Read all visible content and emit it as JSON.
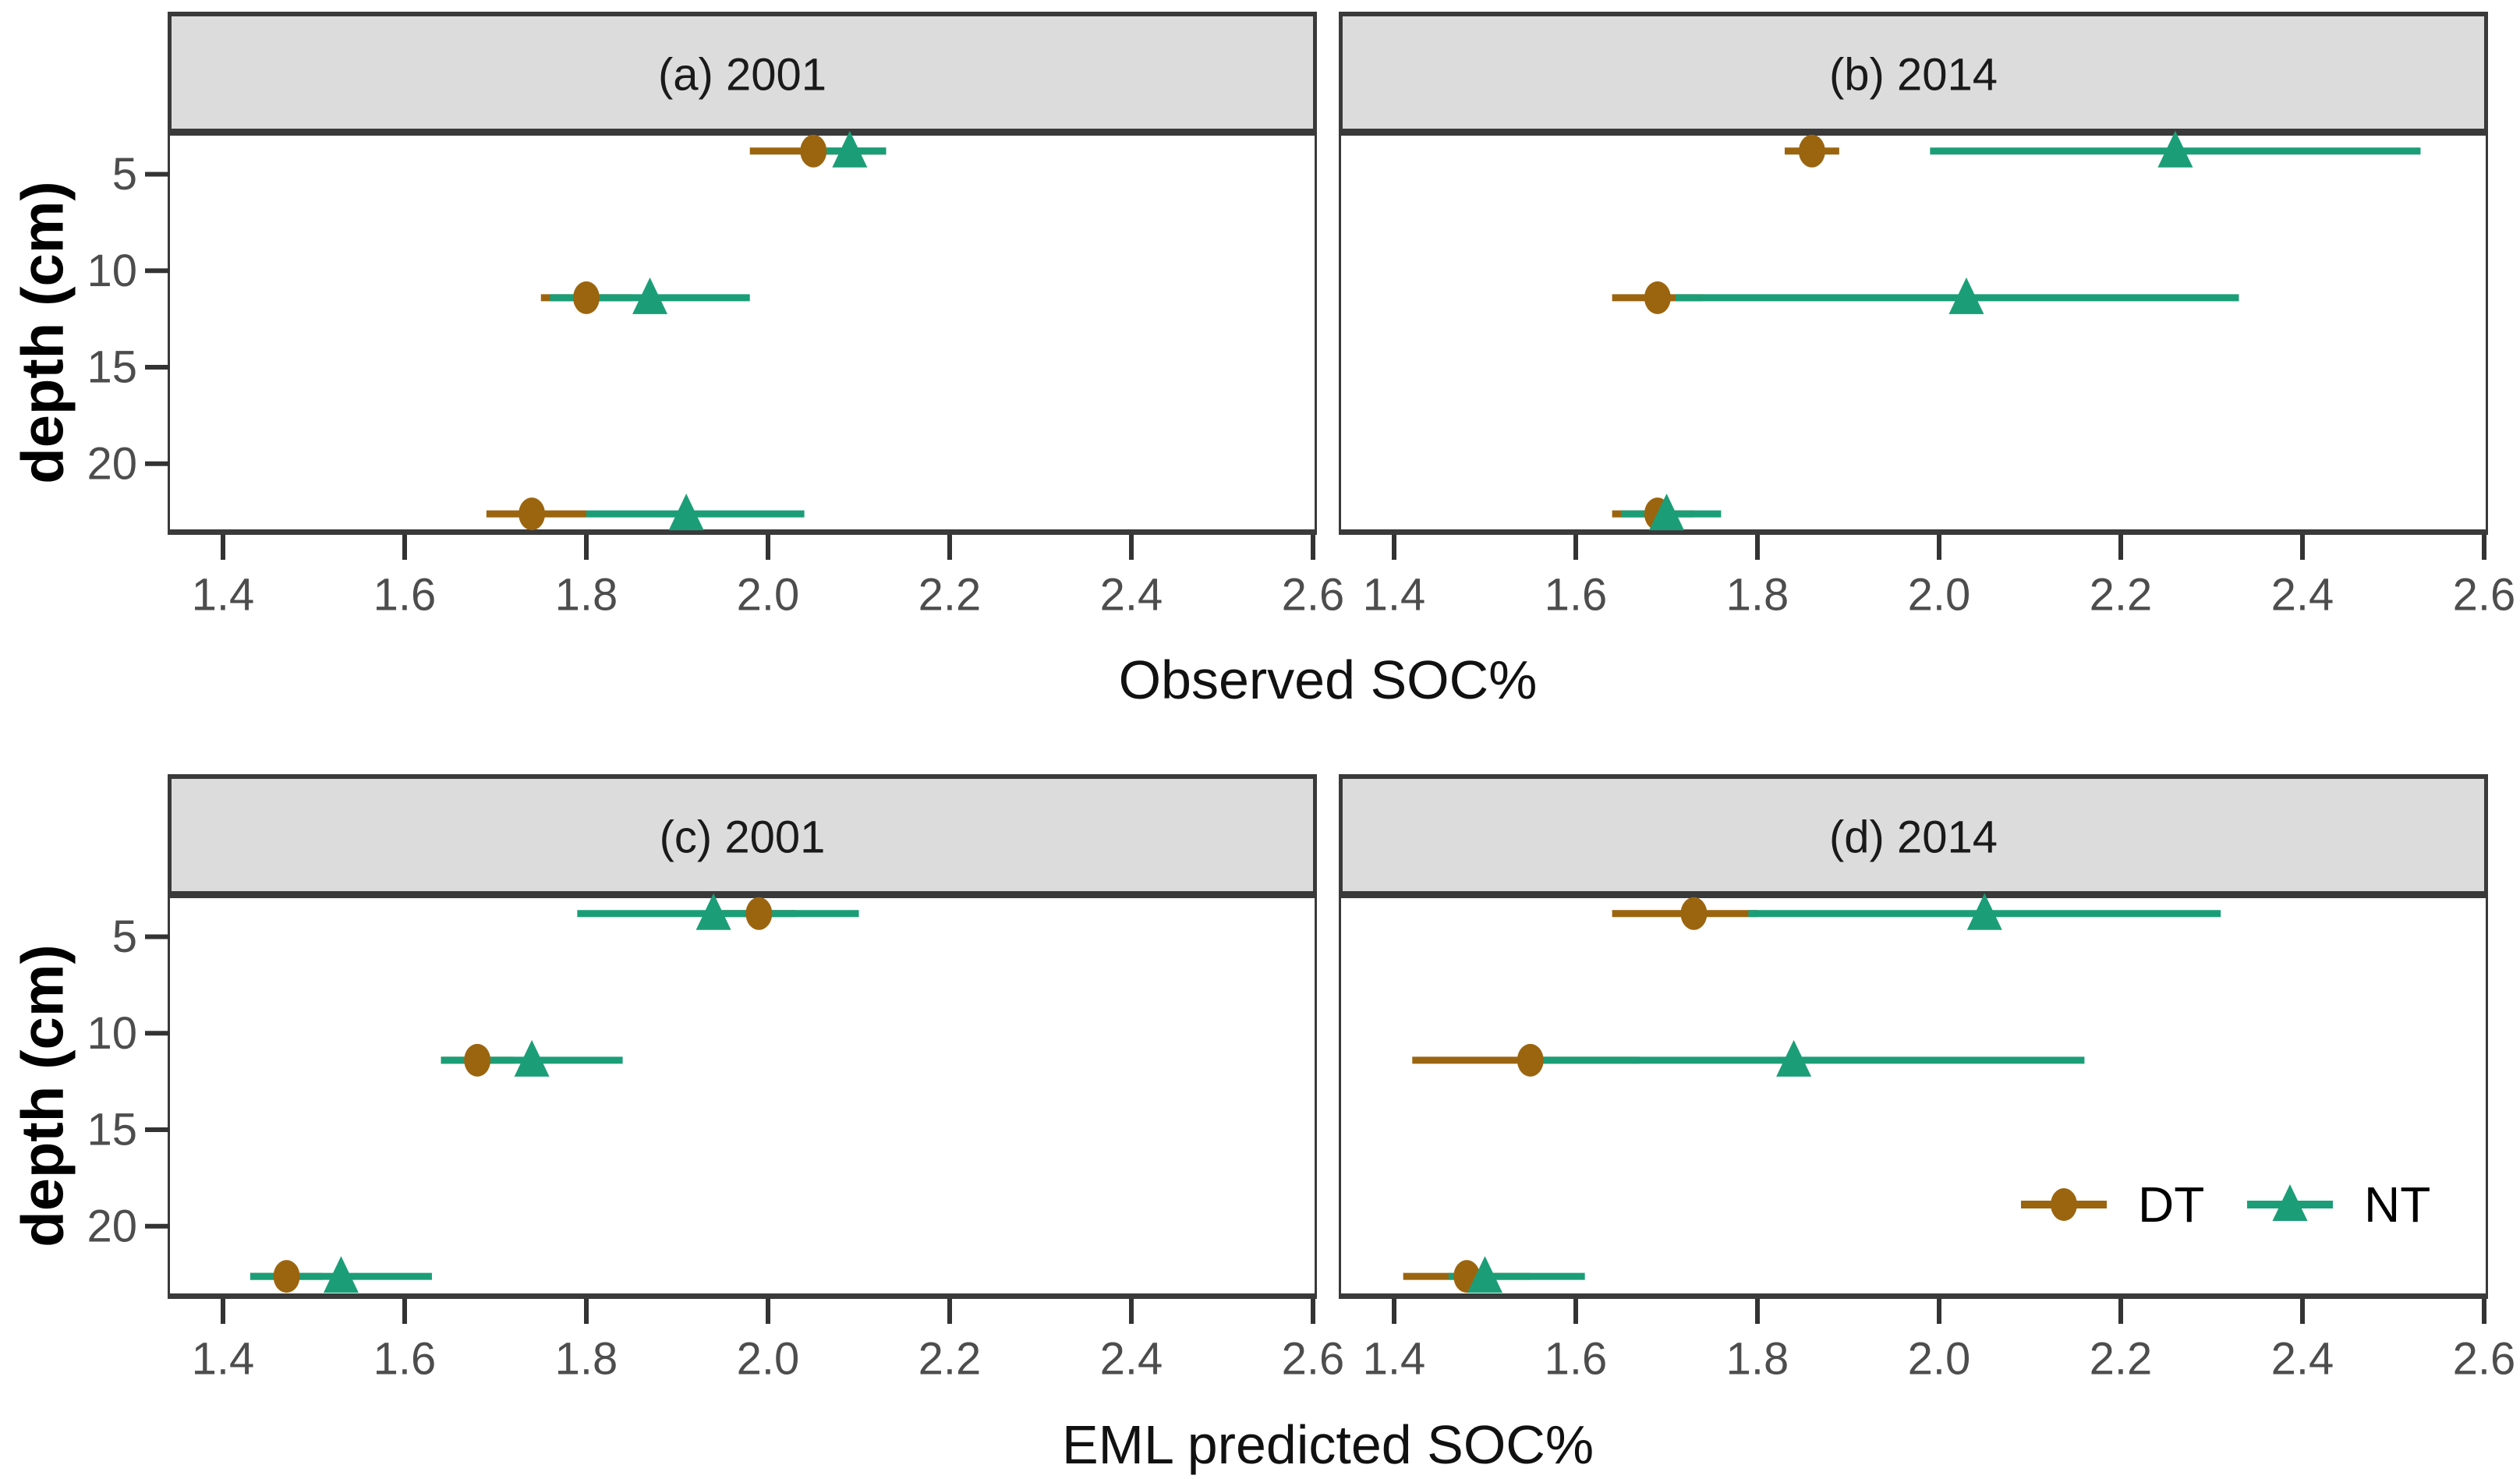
{
  "y_axis_title": "depth (cm)",
  "x_axis_titles": {
    "top": "Observed SOC%",
    "bottom": "EML predicted SOC%"
  },
  "x_tick_labels": [
    "1.4",
    "1.6",
    "1.8",
    "2.0",
    "2.2",
    "2.4",
    "2.6"
  ],
  "y_tick_labels": [
    "5",
    "10",
    "15",
    "20"
  ],
  "colors": {
    "dt": "#9B650F",
    "nt": "#1B9E77",
    "strip_bg": "#DCDCDC",
    "strip_border": "#3A3A3A",
    "panel_border": "#3A3A3A",
    "tick_mark": "#333333",
    "tick_text": "#4D4D4D",
    "title_text": "#111111"
  },
  "legend": {
    "items": [
      {
        "label": "DT",
        "marker": "circle",
        "color": "#9B650F"
      },
      {
        "label": "NT",
        "marker": "triangle",
        "color": "#1B9E77"
      }
    ]
  },
  "chart_data": [
    {
      "type": "scatter",
      "title": "(a) 2001",
      "xlabel": "Observed SOC%",
      "ylabel": "depth (cm)",
      "x_range": [
        1.4,
        2.6
      ],
      "x_tick_step": 0.2,
      "y_ticks_cm": [
        5,
        10,
        15,
        20
      ],
      "depths_cm": [
        3.8,
        11.4,
        22.6
      ],
      "series": [
        {
          "name": "DT",
          "marker": "circle",
          "values": [
            2.05,
            1.8,
            1.74
          ],
          "ci_low": [
            1.98,
            1.75,
            1.69
          ],
          "ci_high": [
            2.13,
            1.85,
            1.8
          ]
        },
        {
          "name": "NT",
          "marker": "triangle",
          "values": [
            2.09,
            1.87,
            1.91
          ],
          "ci_low": [
            2.04,
            1.76,
            1.8
          ],
          "ci_high": [
            2.13,
            1.98,
            2.04
          ]
        }
      ]
    },
    {
      "type": "scatter",
      "title": "(b) 2014",
      "xlabel": "Observed SOC%",
      "ylabel": "depth (cm)",
      "x_range": [
        1.4,
        2.6
      ],
      "x_tick_step": 0.2,
      "y_ticks_cm": [
        5,
        10,
        15,
        20
      ],
      "depths_cm": [
        3.8,
        11.4,
        22.6
      ],
      "series": [
        {
          "name": "DT",
          "marker": "circle",
          "values": [
            1.86,
            1.69,
            1.69
          ],
          "ci_low": [
            1.83,
            1.64,
            1.64
          ],
          "ci_high": [
            1.89,
            1.74,
            1.73
          ]
        },
        {
          "name": "NT",
          "marker": "triangle",
          "values": [
            2.26,
            2.03,
            1.7
          ],
          "ci_low": [
            1.99,
            1.71,
            1.65
          ],
          "ci_high": [
            2.53,
            2.33,
            1.76
          ]
        }
      ]
    },
    {
      "type": "scatter",
      "title": "(c) 2001",
      "xlabel": "EML predicted SOC%",
      "ylabel": "depth (cm)",
      "x_range": [
        1.4,
        2.6
      ],
      "x_tick_step": 0.2,
      "y_ticks_cm": [
        5,
        10,
        15,
        20
      ],
      "depths_cm": [
        3.8,
        11.4,
        22.6
      ],
      "series": [
        {
          "name": "DT",
          "marker": "circle",
          "values": [
            1.99,
            1.68,
            1.47
          ],
          "ci_low": [
            1.95,
            1.64,
            1.43
          ],
          "ci_high": [
            2.03,
            1.72,
            1.51
          ]
        },
        {
          "name": "NT",
          "marker": "triangle",
          "values": [
            1.94,
            1.74,
            1.53
          ],
          "ci_low": [
            1.79,
            1.64,
            1.43
          ],
          "ci_high": [
            2.1,
            1.84,
            1.63
          ]
        }
      ]
    },
    {
      "type": "scatter",
      "title": "(d) 2014",
      "xlabel": "EML predicted SOC%",
      "ylabel": "depth (cm)",
      "x_range": [
        1.4,
        2.6
      ],
      "x_tick_step": 0.2,
      "y_ticks_cm": [
        5,
        10,
        15,
        20
      ],
      "depths_cm": [
        3.8,
        11.4,
        22.6
      ],
      "series": [
        {
          "name": "DT",
          "marker": "circle",
          "values": [
            1.73,
            1.55,
            1.48
          ],
          "ci_low": [
            1.64,
            1.42,
            1.41
          ],
          "ci_high": [
            1.8,
            1.67,
            1.55
          ]
        },
        {
          "name": "NT",
          "marker": "triangle",
          "values": [
            2.05,
            1.84,
            1.5
          ],
          "ci_low": [
            1.79,
            1.55,
            1.46
          ],
          "ci_high": [
            2.31,
            2.16,
            1.61
          ]
        }
      ]
    }
  ]
}
